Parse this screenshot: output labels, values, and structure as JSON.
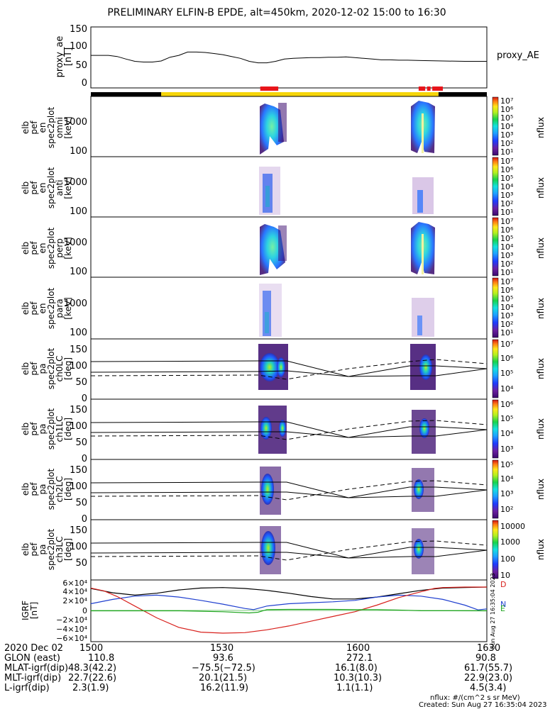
{
  "title": "PRELIMINARY ELFIN-B EPDE, alt=450km, 2020-12-02 15:00 to 16:30",
  "colors": {
    "red_bar": "#e8151b",
    "yellow_bar": "#f5d50a",
    "black_bar": "#000000",
    "line_black": "#000000",
    "line_blue": "#1f3fcf",
    "line_red": "#d8201c",
    "line_green": "#1fa51f"
  },
  "x_range_min": [
    900,
    990
  ],
  "ae_panel": {
    "ylabel": [
      "proxy_ae",
      "[nT]"
    ],
    "yticks": [
      "150",
      "100",
      "50",
      "0"
    ],
    "legend": "proxy_AE",
    "series": [
      [
        900,
        78
      ],
      [
        904,
        78
      ],
      [
        906,
        75
      ],
      [
        908,
        68
      ],
      [
        910,
        62
      ],
      [
        912,
        60
      ],
      [
        914,
        60
      ],
      [
        916,
        63
      ],
      [
        918,
        73
      ],
      [
        920,
        78
      ],
      [
        922,
        87
      ],
      [
        924,
        87
      ],
      [
        926,
        86
      ],
      [
        928,
        83
      ],
      [
        930,
        80
      ],
      [
        932,
        75
      ],
      [
        934,
        70
      ],
      [
        936,
        62
      ],
      [
        938,
        58
      ],
      [
        940,
        58
      ],
      [
        942,
        62
      ],
      [
        944,
        68
      ],
      [
        946,
        70
      ],
      [
        948,
        71
      ],
      [
        950,
        72
      ],
      [
        952,
        72
      ],
      [
        954,
        73
      ],
      [
        956,
        73
      ],
      [
        958,
        74
      ],
      [
        960,
        72
      ],
      [
        962,
        70
      ],
      [
        964,
        68
      ],
      [
        966,
        66
      ],
      [
        968,
        66
      ],
      [
        970,
        65
      ],
      [
        972,
        65
      ],
      [
        975,
        64
      ],
      [
        980,
        63
      ],
      [
        985,
        62
      ],
      [
        990,
        62
      ]
    ]
  },
  "status_bar": {
    "black_ranges": [
      [
        900,
        916
      ],
      [
        979,
        990
      ]
    ],
    "yellow_range": [
      916,
      979
    ],
    "red_ranges": [
      [
        938.5,
        942.6
      ],
      [
        974.5,
        976
      ],
      [
        976.4,
        977.2
      ],
      [
        977.6,
        980
      ]
    ]
  },
  "energy_panels": [
    {
      "ylabel": [
        "elb",
        "pef",
        "en",
        "spec2plot",
        "omni",
        "[keV]"
      ],
      "yticks": [
        "1000",
        "100"
      ],
      "clabels": [
        "10⁷",
        "10⁶",
        "10⁵",
        "10⁴",
        "10³",
        "10²",
        "10¹"
      ],
      "zlabel": "nflux"
    },
    {
      "ylabel": [
        "elb",
        "pef",
        "en",
        "spec2plot",
        "anti",
        "[keV]"
      ],
      "yticks": [
        "1000",
        "100"
      ],
      "clabels": [
        "10⁷",
        "10⁶",
        "10⁵",
        "10⁴",
        "10³",
        "10²",
        "10¹"
      ],
      "zlabel": "nflux"
    },
    {
      "ylabel": [
        "elb",
        "pef",
        "en",
        "spec2plot",
        "perp",
        "[keV]"
      ],
      "yticks": [
        "1000",
        "100"
      ],
      "clabels": [
        "10⁷",
        "10⁶",
        "10⁵",
        "10⁴",
        "10³",
        "10²",
        "10¹"
      ],
      "zlabel": "nflux"
    },
    {
      "ylabel": [
        "elb",
        "pef",
        "en",
        "spec2plot",
        "para",
        "[keV]"
      ],
      "yticks": [
        "1000",
        "100"
      ],
      "clabels": [
        "10⁷",
        "10⁶",
        "10⁵",
        "10⁴",
        "10³",
        "10²",
        "10¹"
      ],
      "zlabel": "nflux"
    }
  ],
  "pa_panels": [
    {
      "ylabel": [
        "elb",
        "pef",
        "pa",
        "spec2plot",
        "ch0LC",
        "[deg]"
      ],
      "yticks": [
        "150",
        "100",
        "50",
        "0"
      ],
      "clabels": [
        "10⁷",
        "10⁶",
        "10⁵",
        "10⁴"
      ],
      "zlabel": "nflux"
    },
    {
      "ylabel": [
        "elb",
        "pef",
        "pa",
        "spec2plot",
        "ch1LC",
        "[deg]"
      ],
      "yticks": [
        "150",
        "100",
        "50",
        "0"
      ],
      "clabels": [
        "10⁶",
        "10⁵",
        "10⁴",
        "10³"
      ],
      "zlabel": "nflux"
    },
    {
      "ylabel": [
        "elb",
        "pef",
        "pa",
        "spec2plot",
        "ch2LC",
        "[deg]"
      ],
      "yticks": [
        "150",
        "100",
        "50",
        "0"
      ],
      "clabels": [
        "10⁵",
        "10⁴",
        "10³",
        "10²"
      ],
      "zlabel": "nflux"
    },
    {
      "ylabel": [
        "elb",
        "pef",
        "pa",
        "spec2plot",
        "ch3LC",
        "[deg]"
      ],
      "yticks": [
        "150",
        "100",
        "50"
      ],
      "clabels": [
        "10000",
        "1000",
        "100",
        "10"
      ],
      "zlabel": "nflux"
    }
  ],
  "igrf_panel": {
    "ylabel": [
      "IGRF",
      "[nT]"
    ],
    "yticks": [
      "6×10⁴",
      "4×10⁴",
      "2×10⁴",
      "0",
      "−2×10⁴",
      "−4×10⁴",
      "−6×10⁴"
    ],
    "side_labels": {
      "d": "D",
      "n": "N",
      "e": "E"
    },
    "stamp": "Sun Aug 27 16:35:04 2023",
    "series": [
      {
        "color": "#000000",
        "points": [
          [
            900,
            47000
          ],
          [
            905,
            38000
          ],
          [
            910,
            33000
          ],
          [
            915,
            37000
          ],
          [
            920,
            44000
          ],
          [
            925,
            48000
          ],
          [
            930,
            49000
          ],
          [
            935,
            47000
          ],
          [
            940,
            43000
          ],
          [
            945,
            37000
          ],
          [
            950,
            30000
          ],
          [
            955,
            25000
          ],
          [
            960,
            25000
          ],
          [
            965,
            29000
          ],
          [
            970,
            36000
          ],
          [
            975,
            43000
          ],
          [
            980,
            48000
          ],
          [
            985,
            49000
          ],
          [
            990,
            50000
          ]
        ]
      },
      {
        "color": "#1f3fcf",
        "points": [
          [
            900,
            15000
          ],
          [
            905,
            24000
          ],
          [
            910,
            31000
          ],
          [
            915,
            33000
          ],
          [
            920,
            29000
          ],
          [
            925,
            22000
          ],
          [
            930,
            14000
          ],
          [
            935,
            5000
          ],
          [
            937,
            2500
          ],
          [
            940,
            10000
          ],
          [
            945,
            15000
          ],
          [
            950,
            17000
          ],
          [
            955,
            19000
          ],
          [
            960,
            22000
          ],
          [
            965,
            29000
          ],
          [
            970,
            33000
          ],
          [
            975,
            31000
          ],
          [
            980,
            24000
          ],
          [
            985,
            12000
          ],
          [
            988,
            2000
          ],
          [
            990,
            4000
          ]
        ]
      },
      {
        "color": "#d8201c",
        "points": [
          [
            900,
            48000
          ],
          [
            903,
            42000
          ],
          [
            906,
            30000
          ],
          [
            910,
            10000
          ],
          [
            915,
            -15000
          ],
          [
            920,
            -35000
          ],
          [
            925,
            -45000
          ],
          [
            930,
            -47000
          ],
          [
            935,
            -46000
          ],
          [
            940,
            -40000
          ],
          [
            945,
            -32000
          ],
          [
            950,
            -22000
          ],
          [
            955,
            -12000
          ],
          [
            960,
            -2000
          ],
          [
            965,
            12000
          ],
          [
            970,
            28000
          ],
          [
            975,
            40000
          ],
          [
            978,
            47000
          ],
          [
            980,
            49000
          ],
          [
            985,
            50000
          ],
          [
            990,
            50000
          ]
        ]
      },
      {
        "color": "#1fa51f",
        "points": [
          [
            900,
            0
          ],
          [
            920,
            0
          ],
          [
            930,
            -2000
          ],
          [
            936,
            -4500
          ],
          [
            938,
            -3000
          ],
          [
            940,
            2500
          ],
          [
            945,
            3000
          ],
          [
            955,
            3000
          ],
          [
            960,
            2500
          ],
          [
            965,
            2500
          ],
          [
            970,
            1500
          ],
          [
            975,
            200
          ],
          [
            990,
            0
          ]
        ]
      }
    ]
  },
  "bottom": {
    "rows": [
      {
        "label": "2020 Dec 02",
        "values": [
          "1500",
          "1530",
          "1600",
          "1630"
        ]
      },
      {
        "label": "GLON (east)",
        "values": [
          "110.8",
          "93.6",
          "272.1",
          "90.8"
        ]
      },
      {
        "label": "MLAT-igrf(dip)",
        "values": [
          "48.3(42.2)",
          "−75.5(−72.5)",
          "16.1(8.0)",
          "61.7(55.7)"
        ]
      },
      {
        "label": "MLT-igrf(dip)",
        "values": [
          "22.7(22.6)",
          "20.1(21.5)",
          "10.3(10.3)",
          "22.9(23.0)"
        ]
      },
      {
        "label": "L-igrf(dip)",
        "values": [
          "2.3(1.9)",
          "16.2(11.9)",
          "1.1(1.1)",
          "4.5(3.4)"
        ]
      }
    ],
    "units_note": "nflux: #/(cm^2 s sr MeV)",
    "created": "Created: Sun Aug 27 16:35:04 2023"
  }
}
